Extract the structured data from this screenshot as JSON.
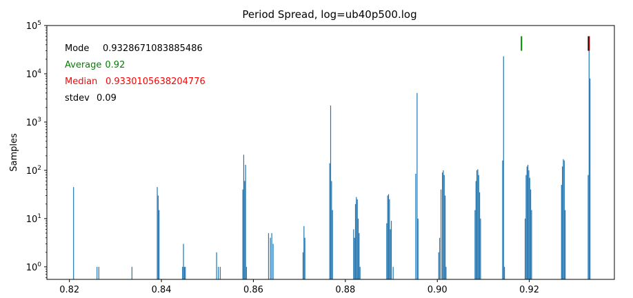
{
  "chart_data": {
    "type": "bar",
    "title": "Period Spread, log=ub40p500.log",
    "xlabel": "",
    "ylabel": "Samples",
    "yscale": "log",
    "xlim": [
      0.8151,
      0.9385
    ],
    "ylim": [
      0.55,
      100000
    ],
    "xticks": [
      "0.82",
      "0.84",
      "0.86",
      "0.88",
      "0.90",
      "0.92"
    ],
    "xtick_values": [
      0.82,
      0.84,
      0.86,
      0.88,
      0.9,
      0.92
    ],
    "yticks": [
      {
        "value": 1,
        "base": "10",
        "exp": "0"
      },
      {
        "value": 10,
        "base": "10",
        "exp": "1"
      },
      {
        "value": 100,
        "base": "10",
        "exp": "2"
      },
      {
        "value": 1000,
        "base": "10",
        "exp": "3"
      },
      {
        "value": 10000,
        "base": "10",
        "exp": "4"
      },
      {
        "value": 100000,
        "base": "10",
        "exp": "5"
      }
    ],
    "bar_color": "#1f77b4",
    "grid": false,
    "series": [
      {
        "x": [
          0.8209,
          0.826,
          0.8264,
          0.8336,
          0.8391,
          0.8393,
          0.8395,
          0.8446,
          0.8448,
          0.845,
          0.8452,
          0.852,
          0.8524,
          0.8528,
          0.8577,
          0.8579,
          0.8581,
          0.8583,
          0.8585,
          0.8633,
          0.8637,
          0.864,
          0.8643,
          0.8708,
          0.871,
          0.8712,
          0.8766,
          0.8768,
          0.877,
          0.8772,
          0.8818,
          0.882,
          0.8822,
          0.8824,
          0.8826,
          0.8828,
          0.883,
          0.8832,
          0.889,
          0.8892,
          0.8894,
          0.8896,
          0.8898,
          0.89,
          0.8904,
          0.8953,
          0.8956,
          0.8958,
          0.9003,
          0.9005,
          0.9008,
          0.9011,
          0.9013,
          0.9015,
          0.9017,
          0.9019,
          0.9082,
          0.9084,
          0.9086,
          0.9088,
          0.909,
          0.9092,
          0.9094,
          0.9142,
          0.9144,
          0.9146,
          0.9191,
          0.9193,
          0.9195,
          0.9197,
          0.9199,
          0.9201,
          0.9203,
          0.9205,
          0.927,
          0.9272,
          0.9274,
          0.9276,
          0.9278,
          0.9328,
          0.933,
          0.9332
        ],
        "values": [
          45,
          1,
          1,
          1,
          45,
          30,
          15,
          1,
          3,
          1,
          1,
          2,
          1,
          1,
          40,
          210,
          60,
          130,
          1,
          5,
          4,
          5,
          3,
          2,
          7,
          4,
          140,
          2200,
          60,
          15,
          6,
          4,
          20,
          28,
          25,
          10,
          5,
          1,
          8,
          30,
          32,
          25,
          6,
          9,
          1,
          85,
          4000,
          10,
          2,
          4,
          40,
          90,
          100,
          80,
          30,
          1,
          15,
          60,
          100,
          105,
          80,
          35,
          10,
          160,
          23000,
          1,
          10,
          80,
          120,
          130,
          100,
          70,
          40,
          15,
          50,
          120,
          170,
          160,
          15,
          80,
          35000,
          8000
        ]
      }
    ],
    "annotations": [
      {
        "label": "Mode",
        "value": "0.9328671083885486",
        "color": "#000000"
      },
      {
        "label": "Average",
        "value": "0.92",
        "color": "#008000"
      },
      {
        "label": "Median",
        "value": "0.9330105638204776",
        "color": "#ff0000"
      },
      {
        "label": "stdev",
        "value": "0.09",
        "color": "#000000"
      }
    ],
    "markers": [
      {
        "name": "average-marker",
        "x": 0.9183,
        "y_low": 30000,
        "y_high": 60000,
        "color": "#008000"
      },
      {
        "name": "mode-marker",
        "x": 0.93287,
        "y_low": 30000,
        "y_high": 60000,
        "color": "#000000"
      },
      {
        "name": "median-marker",
        "x": 0.93301,
        "y_low": 30000,
        "y_high": 60000,
        "color": "#8b0000"
      }
    ]
  }
}
